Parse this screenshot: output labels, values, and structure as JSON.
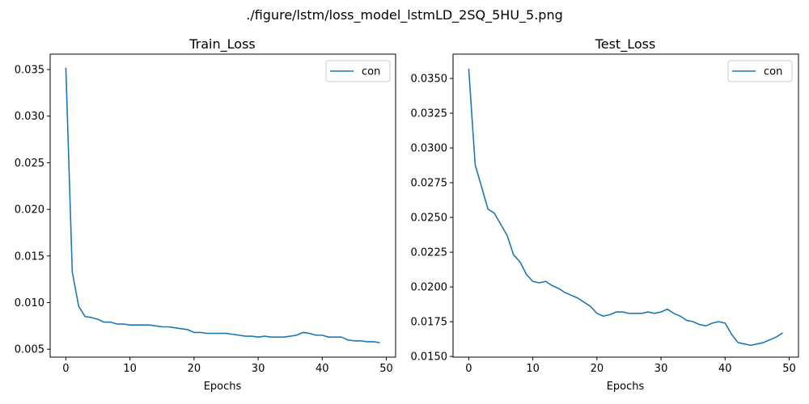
{
  "figure_title": "./figure/lstm/loss_model_lstmLD_2SQ_5HU_5.png",
  "chart_data": [
    {
      "type": "line",
      "title": "Train_Loss",
      "xlabel": "Epochs",
      "ylabel": "",
      "xlim": [
        -2.45,
        51.45
      ],
      "ylim": [
        0.00415,
        0.03665
      ],
      "xticks": [
        0,
        10,
        20,
        30,
        40,
        50
      ],
      "yticks": [
        0.005,
        0.01,
        0.015,
        0.02,
        0.025,
        0.03,
        0.035
      ],
      "ytick_labels": [
        "0.005",
        "0.010",
        "0.015",
        "0.020",
        "0.025",
        "0.030",
        "0.035"
      ],
      "legend_position": "upper right",
      "grid": false,
      "series": [
        {
          "name": "con",
          "color": "#1f77b4",
          "x": [
            0,
            1,
            2,
            3,
            4,
            5,
            6,
            7,
            8,
            9,
            10,
            11,
            12,
            13,
            14,
            15,
            16,
            17,
            18,
            19,
            20,
            21,
            22,
            23,
            24,
            25,
            26,
            27,
            28,
            29,
            30,
            31,
            32,
            33,
            34,
            35,
            36,
            37,
            38,
            39,
            40,
            41,
            42,
            43,
            44,
            45,
            46,
            47,
            48,
            49
          ],
          "y": [
            0.0352,
            0.0133,
            0.0096,
            0.0085,
            0.0084,
            0.0082,
            0.0079,
            0.0079,
            0.0077,
            0.0077,
            0.0076,
            0.0076,
            0.0076,
            0.0076,
            0.0075,
            0.0074,
            0.0074,
            0.0073,
            0.0072,
            0.0071,
            0.0068,
            0.0068,
            0.0067,
            0.0067,
            0.0067,
            0.0067,
            0.0066,
            0.0065,
            0.0064,
            0.0064,
            0.0063,
            0.0064,
            0.0063,
            0.0063,
            0.0063,
            0.0064,
            0.0065,
            0.0068,
            0.0067,
            0.0065,
            0.0065,
            0.0063,
            0.0063,
            0.0063,
            0.006,
            0.0059,
            0.0059,
            0.0058,
            0.0058,
            0.0057
          ]
        }
      ]
    },
    {
      "type": "line",
      "title": "Test_Loss",
      "xlabel": "Epochs",
      "ylabel": "",
      "xlim": [
        -2.45,
        51.45
      ],
      "ylim": [
        0.01495,
        0.03675
      ],
      "xticks": [
        0,
        10,
        20,
        30,
        40,
        50
      ],
      "yticks": [
        0.015,
        0.0175,
        0.02,
        0.0225,
        0.025,
        0.0275,
        0.03,
        0.0325,
        0.035
      ],
      "ytick_labels": [
        "0.0150",
        "0.0175",
        "0.0200",
        "0.0225",
        "0.0250",
        "0.0275",
        "0.0300",
        "0.0325",
        "0.0350"
      ],
      "legend_position": "upper right",
      "grid": false,
      "series": [
        {
          "name": "con",
          "color": "#1f77b4",
          "x": [
            0,
            1,
            2,
            3,
            4,
            5,
            6,
            7,
            8,
            9,
            10,
            11,
            12,
            13,
            14,
            15,
            16,
            17,
            18,
            19,
            20,
            21,
            22,
            23,
            24,
            25,
            26,
            27,
            28,
            29,
            30,
            31,
            32,
            33,
            34,
            35,
            36,
            37,
            38,
            39,
            40,
            41,
            42,
            43,
            44,
            45,
            46,
            47,
            48,
            49
          ],
          "y": [
            0.0357,
            0.0288,
            0.0272,
            0.0256,
            0.0253,
            0.0245,
            0.0237,
            0.0223,
            0.0218,
            0.0209,
            0.0204,
            0.0203,
            0.0204,
            0.0201,
            0.0199,
            0.0196,
            0.0194,
            0.0192,
            0.0189,
            0.0186,
            0.0181,
            0.0179,
            0.018,
            0.0182,
            0.0182,
            0.0181,
            0.0181,
            0.0181,
            0.0182,
            0.0181,
            0.0182,
            0.0184,
            0.0181,
            0.0179,
            0.0176,
            0.0175,
            0.0173,
            0.0172,
            0.0174,
            0.0175,
            0.0174,
            0.0166,
            0.016,
            0.0159,
            0.0158,
            0.0159,
            0.016,
            0.0162,
            0.0164,
            0.0167
          ]
        }
      ]
    }
  ]
}
